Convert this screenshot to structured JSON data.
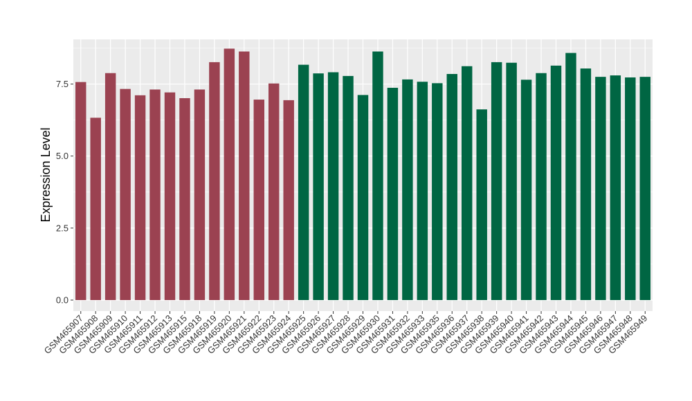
{
  "chart_data": {
    "type": "bar",
    "title": "",
    "xlabel": "",
    "ylabel": "Expression Level",
    "ylim": [
      0,
      9.05
    ],
    "yticks": [
      0.0,
      2.5,
      5.0,
      7.5
    ],
    "ytick_labels": [
      "0.0",
      "2.5",
      "5.0",
      "7.5"
    ],
    "grid": true,
    "legend": "none",
    "panel_color": "#EBEBEB",
    "grid_color": "#FFFFFF",
    "colors": {
      "group1": "#9B4251",
      "group2": "#006643"
    },
    "categories": [
      "GSM465907",
      "GSM465908",
      "GSM465909",
      "GSM465910",
      "GSM465911",
      "GSM465912",
      "GSM465913",
      "GSM465915",
      "GSM465918",
      "GSM465919",
      "GSM465920",
      "GSM465921",
      "GSM465922",
      "GSM465923",
      "GSM465924",
      "GSM465925",
      "GSM465926",
      "GSM465927",
      "GSM465928",
      "GSM465929",
      "GSM465930",
      "GSM465931",
      "GSM465932",
      "GSM465933",
      "GSM465935",
      "GSM465936",
      "GSM465937",
      "GSM465938",
      "GSM465939",
      "GSM465940",
      "GSM465941",
      "GSM465942",
      "GSM465943",
      "GSM465944",
      "GSM465945",
      "GSM465946",
      "GSM465947",
      "GSM465948",
      "GSM465949"
    ],
    "values": [
      7.57,
      6.33,
      7.88,
      7.33,
      7.11,
      7.31,
      7.21,
      7.01,
      7.31,
      8.26,
      8.73,
      8.63,
      6.96,
      7.52,
      6.94,
      8.17,
      7.87,
      7.91,
      7.78,
      7.12,
      8.63,
      7.37,
      7.66,
      7.58,
      7.53,
      7.85,
      8.12,
      6.62,
      8.26,
      8.24,
      7.65,
      7.88,
      8.14,
      8.58,
      8.04,
      7.75,
      7.8,
      7.73,
      7.75
    ],
    "group": [
      1,
      1,
      1,
      1,
      1,
      1,
      1,
      1,
      1,
      1,
      1,
      1,
      1,
      1,
      1,
      2,
      2,
      2,
      2,
      2,
      2,
      2,
      2,
      2,
      2,
      2,
      2,
      2,
      2,
      2,
      2,
      2,
      2,
      2,
      2,
      2,
      2,
      2,
      2
    ]
  }
}
